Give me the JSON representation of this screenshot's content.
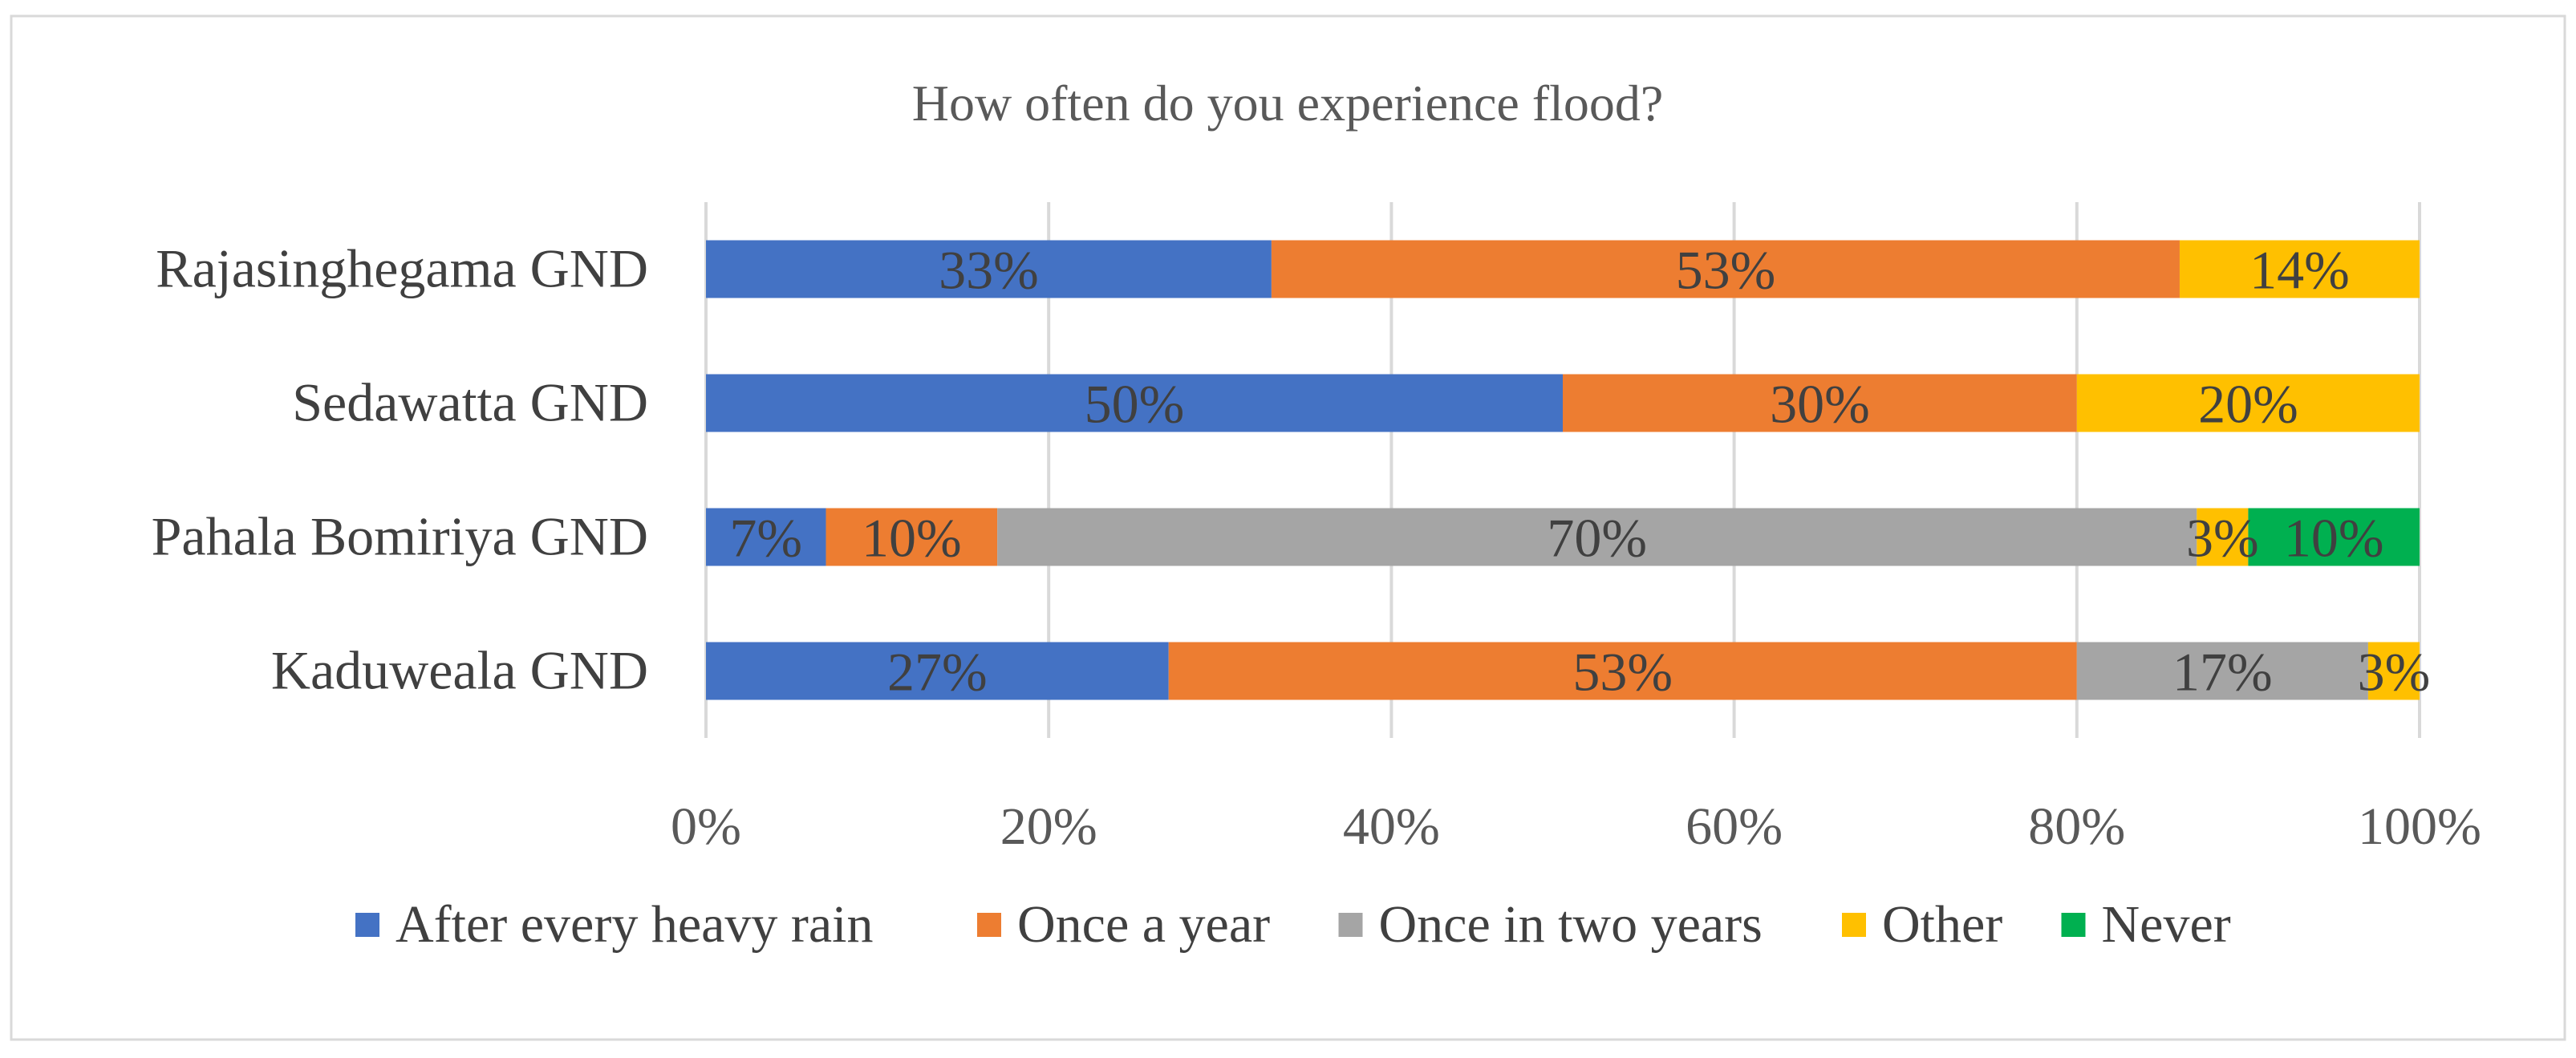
{
  "chart_data": {
    "type": "bar",
    "orientation": "horizontal",
    "stacking": "percent",
    "title": "How often do you experience flood?",
    "xlabel": "",
    "ylabel": "",
    "xlim": [
      0,
      100
    ],
    "grid": true,
    "legend_position": "bottom",
    "x_ticks": [
      "0%",
      "20%",
      "40%",
      "60%",
      "80%",
      "100%"
    ],
    "categories": [
      "Rajasinghegama GND",
      "Sedawatta GND",
      "Pahala Bomiriya GND",
      "Kaduweala GND"
    ],
    "series": [
      {
        "name": "After every heavy rain",
        "color": "#4472C4",
        "values": [
          33,
          50,
          7,
          27
        ],
        "labels": [
          "33%",
          "50%",
          "7%",
          "27%"
        ]
      },
      {
        "name": "Once a year",
        "color": "#ED7D31",
        "values": [
          53,
          30,
          10,
          53
        ],
        "labels": [
          "53%",
          "30%",
          "10%",
          "53%"
        ]
      },
      {
        "name": "Once in two years",
        "color": "#A5A5A5",
        "values": [
          0,
          0,
          70,
          17
        ],
        "labels": [
          "",
          "",
          "70%",
          "17%"
        ]
      },
      {
        "name": "Other",
        "color": "#FFC000",
        "values": [
          14,
          20,
          3,
          3
        ],
        "labels": [
          "14%",
          "20%",
          "3%",
          "3%"
        ]
      },
      {
        "name": "Never",
        "color": "#00B050",
        "values": [
          0,
          0,
          10,
          0
        ],
        "labels": [
          "",
          "",
          "10%",
          ""
        ]
      }
    ]
  }
}
